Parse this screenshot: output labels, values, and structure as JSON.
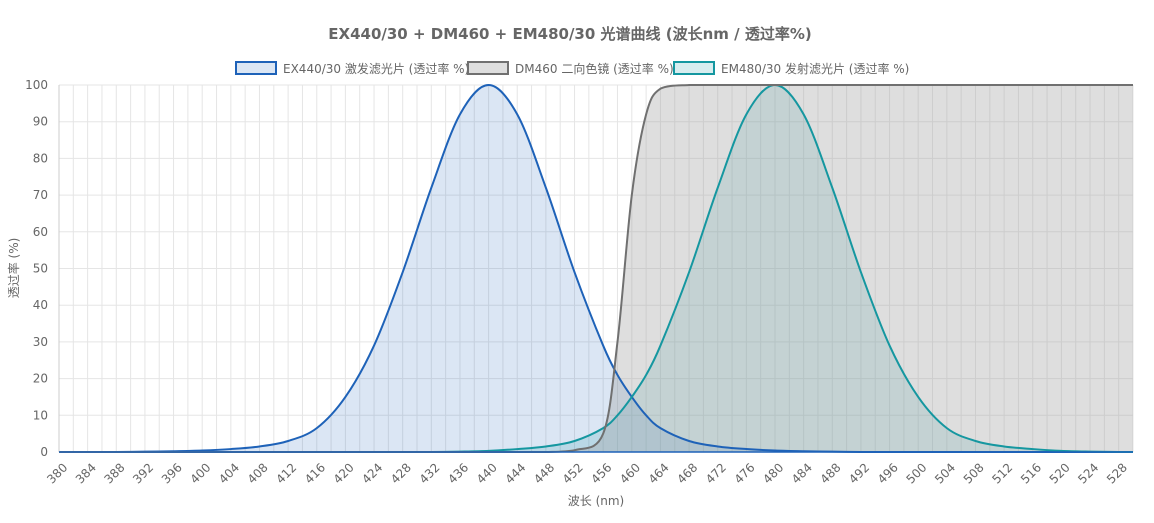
{
  "chart_data": {
    "type": "line",
    "title": "EX440/30 + DM460 + EM480/30 光谱曲线 (波长nm / 透过率%)",
    "xlabel": "波长 (nm)",
    "ylabel": "透过率 (%)",
    "xlim": [
      380,
      530
    ],
    "ylim": [
      0,
      100
    ],
    "x_ticks": [
      "380",
      "384",
      "388",
      "392",
      "396",
      "400",
      "404",
      "408",
      "412",
      "416",
      "420",
      "424",
      "428",
      "432",
      "436",
      "440",
      "444",
      "448",
      "452",
      "456",
      "460",
      "464",
      "468",
      "472",
      "476",
      "480",
      "484",
      "488",
      "492",
      "496",
      "500",
      "504",
      "508",
      "512",
      "516",
      "520",
      "524",
      "528"
    ],
    "y_ticks": [
      "0",
      "10",
      "20",
      "30",
      "40",
      "50",
      "60",
      "70",
      "80",
      "90",
      "100"
    ],
    "grid": true,
    "legend_position": "top",
    "x": [
      380,
      384,
      388,
      392,
      396,
      400,
      404,
      408,
      412,
      416,
      420,
      424,
      428,
      432,
      436,
      440,
      444,
      448,
      452,
      456,
      458,
      460,
      462,
      464,
      468,
      472,
      476,
      480,
      484,
      488,
      492,
      496,
      500,
      504,
      508,
      512,
      516,
      520,
      524,
      528,
      530
    ],
    "series": [
      {
        "name": "EX440/30 激发滤光片 (透过率 %)",
        "color": "#1e62b8",
        "fill": "rgba(30,98,184,0.16)",
        "values": [
          0,
          0,
          0,
          0.1,
          0.2,
          0.4,
          0.8,
          1.5,
          3,
          6.5,
          15,
          29,
          49,
          72,
          92,
          100,
          92,
          72,
          49,
          29,
          21,
          15,
          10,
          6.5,
          3,
          1.5,
          0.8,
          0.4,
          0.2,
          0.1,
          0,
          0,
          0,
          0,
          0,
          0,
          0,
          0,
          0,
          0,
          0
        ]
      },
      {
        "name": "DM460 二向色镜 (透过率 %)",
        "color": "#707070",
        "fill": "rgba(160,160,160,0.35)",
        "values": [
          0,
          0,
          0,
          0,
          0,
          0,
          0,
          0,
          0,
          0,
          0,
          0,
          0,
          0,
          0,
          0,
          0,
          0,
          0.5,
          5,
          30,
          70,
          92,
          99,
          100,
          100,
          100,
          100,
          100,
          100,
          100,
          100,
          100,
          100,
          100,
          100,
          100,
          100,
          100,
          100,
          100
        ]
      },
      {
        "name": "EM480/30 发射滤光片 (透过率 %)",
        "color": "#1597a0",
        "fill": "rgba(21,151,160,0.17)",
        "values": [
          0,
          0,
          0,
          0,
          0,
          0,
          0,
          0,
          0,
          0,
          0,
          0,
          0,
          0,
          0.1,
          0.3,
          0.8,
          1.5,
          3,
          6.5,
          10,
          15,
          21,
          29,
          49,
          72,
          92,
          100,
          92,
          72,
          49,
          29,
          15,
          6.5,
          3,
          1.5,
          0.8,
          0.3,
          0.1,
          0,
          0
        ]
      }
    ]
  }
}
